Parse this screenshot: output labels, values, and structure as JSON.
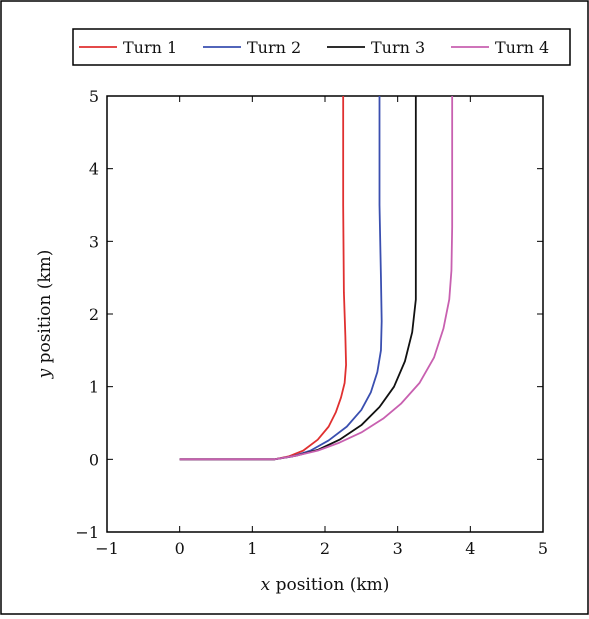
{
  "chart_data": {
    "type": "line",
    "title": "",
    "xlabel": "x position (km)",
    "xlabel_var": "x",
    "xlabel_rest": " position (km)",
    "ylabel": "y position (km)",
    "ylabel_var": "y",
    "ylabel_rest": " position (km)",
    "xlim": [
      -1,
      5
    ],
    "ylim": [
      -1,
      5
    ],
    "xticks": [
      -1,
      0,
      1,
      2,
      3,
      4,
      5
    ],
    "yticks": [
      -1,
      0,
      1,
      2,
      3,
      4,
      5
    ],
    "xtick_labels": [
      "−1",
      "0",
      "1",
      "2",
      "3",
      "4",
      "5"
    ],
    "ytick_labels": [
      "−1",
      "0",
      "1",
      "2",
      "3",
      "4",
      "5"
    ],
    "grid": false,
    "legend_position": "top",
    "series": [
      {
        "name": "Turn 1",
        "color": "#e03030",
        "x": [
          0,
          1.3,
          1.5,
          1.7,
          1.9,
          2.05,
          2.15,
          2.22,
          2.27,
          2.29,
          2.28,
          2.26,
          2.25,
          2.25
        ],
        "y": [
          0,
          0,
          0.04,
          0.12,
          0.27,
          0.45,
          0.65,
          0.85,
          1.05,
          1.3,
          1.7,
          2.3,
          3.5,
          5.0
        ]
      },
      {
        "name": "Turn 2",
        "color": "#3a4fb0",
        "x": [
          0,
          1.3,
          1.55,
          1.8,
          2.05,
          2.3,
          2.5,
          2.63,
          2.72,
          2.77,
          2.78,
          2.77,
          2.75,
          2.75
        ],
        "y": [
          0,
          0,
          0.04,
          0.12,
          0.26,
          0.45,
          0.68,
          0.92,
          1.2,
          1.5,
          1.9,
          2.5,
          3.5,
          5.0
        ]
      },
      {
        "name": "Turn 3",
        "color": "#111111",
        "x": [
          0,
          1.3,
          1.6,
          1.9,
          2.2,
          2.5,
          2.75,
          2.95,
          3.1,
          3.2,
          3.25,
          3.25,
          3.25
        ],
        "y": [
          0,
          0,
          0.05,
          0.13,
          0.27,
          0.47,
          0.72,
          1.0,
          1.35,
          1.75,
          2.2,
          3.0,
          5.0
        ]
      },
      {
        "name": "Turn 4",
        "color": "#c860b0",
        "x": [
          0,
          1.3,
          1.6,
          1.9,
          2.2,
          2.5,
          2.8,
          3.05,
          3.3,
          3.5,
          3.63,
          3.71,
          3.74,
          3.75,
          3.75
        ],
        "y": [
          0,
          0,
          0.05,
          0.12,
          0.23,
          0.37,
          0.56,
          0.77,
          1.05,
          1.4,
          1.8,
          2.2,
          2.6,
          3.2,
          5.0
        ]
      }
    ]
  }
}
